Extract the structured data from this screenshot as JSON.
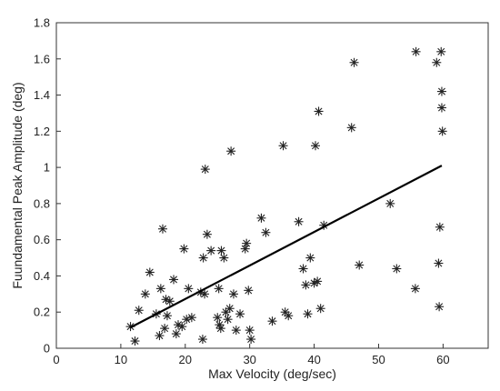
{
  "chart_data": {
    "type": "scatter",
    "xlabel": "Max Velocity (deg/sec)",
    "ylabel": "Fuundamental Peak Amplitude (deg)",
    "xlim": [
      0,
      67
    ],
    "ylim": [
      0,
      1.8
    ],
    "xticks": [
      "0",
      "10",
      "20",
      "30",
      "40",
      "50",
      "60"
    ],
    "yticks": [
      "0",
      "0.2",
      "0.4",
      "0.6",
      "0.8",
      "1",
      "1.2",
      "1.4",
      "1.6",
      "1.8"
    ],
    "grid": false,
    "marker": "asterisk",
    "points": [
      [
        11.5,
        0.12
      ],
      [
        12.2,
        0.04
      ],
      [
        12.8,
        0.21
      ],
      [
        13.8,
        0.3
      ],
      [
        14.5,
        0.42
      ],
      [
        15.5,
        0.19
      ],
      [
        16.0,
        0.07
      ],
      [
        16.2,
        0.33
      ],
      [
        16.5,
        0.66
      ],
      [
        16.8,
        0.11
      ],
      [
        17.0,
        0.27
      ],
      [
        17.2,
        0.18
      ],
      [
        17.6,
        0.26
      ],
      [
        18.2,
        0.38
      ],
      [
        18.6,
        0.08
      ],
      [
        18.9,
        0.13
      ],
      [
        19.5,
        0.12
      ],
      [
        19.8,
        0.55
      ],
      [
        20.2,
        0.16
      ],
      [
        20.5,
        0.33
      ],
      [
        21.0,
        0.17
      ],
      [
        22.4,
        0.31
      ],
      [
        22.7,
        0.05
      ],
      [
        22.8,
        0.5
      ],
      [
        23.0,
        0.3
      ],
      [
        23.1,
        0.99
      ],
      [
        23.4,
        0.63
      ],
      [
        24.0,
        0.54
      ],
      [
        25.0,
        0.17
      ],
      [
        25.2,
        0.33
      ],
      [
        25.3,
        0.13
      ],
      [
        25.5,
        0.11
      ],
      [
        25.6,
        0.54
      ],
      [
        26.0,
        0.5
      ],
      [
        26.3,
        0.2
      ],
      [
        26.6,
        0.16
      ],
      [
        26.9,
        0.22
      ],
      [
        27.1,
        1.09
      ],
      [
        27.5,
        0.3
      ],
      [
        27.9,
        0.1
      ],
      [
        28.5,
        0.19
      ],
      [
        29.3,
        0.55
      ],
      [
        29.5,
        0.58
      ],
      [
        29.8,
        0.32
      ],
      [
        30.0,
        0.1
      ],
      [
        30.2,
        0.05
      ],
      [
        31.8,
        0.72
      ],
      [
        32.5,
        0.64
      ],
      [
        33.5,
        0.15
      ],
      [
        35.2,
        1.12
      ],
      [
        35.5,
        0.2
      ],
      [
        36.0,
        0.18
      ],
      [
        37.6,
        0.7
      ],
      [
        38.3,
        0.44
      ],
      [
        38.7,
        0.35
      ],
      [
        39.0,
        0.19
      ],
      [
        39.4,
        0.5
      ],
      [
        40.0,
        0.36
      ],
      [
        40.2,
        1.12
      ],
      [
        40.5,
        0.37
      ],
      [
        40.7,
        1.31
      ],
      [
        41.0,
        0.22
      ],
      [
        41.5,
        0.68
      ],
      [
        45.8,
        1.22
      ],
      [
        46.2,
        1.58
      ],
      [
        47.0,
        0.46
      ],
      [
        51.8,
        0.8
      ],
      [
        52.8,
        0.44
      ],
      [
        55.7,
        0.33
      ],
      [
        55.8,
        1.64
      ],
      [
        59.0,
        1.58
      ],
      [
        59.3,
        0.47
      ],
      [
        59.4,
        0.23
      ],
      [
        59.5,
        0.67
      ],
      [
        59.7,
        1.64
      ],
      [
        59.8,
        1.33
      ],
      [
        59.8,
        1.42
      ],
      [
        59.9,
        1.2
      ]
    ],
    "fit_line": {
      "x": [
        11.5,
        59.8
      ],
      "y": [
        0.115,
        1.01
      ]
    }
  }
}
